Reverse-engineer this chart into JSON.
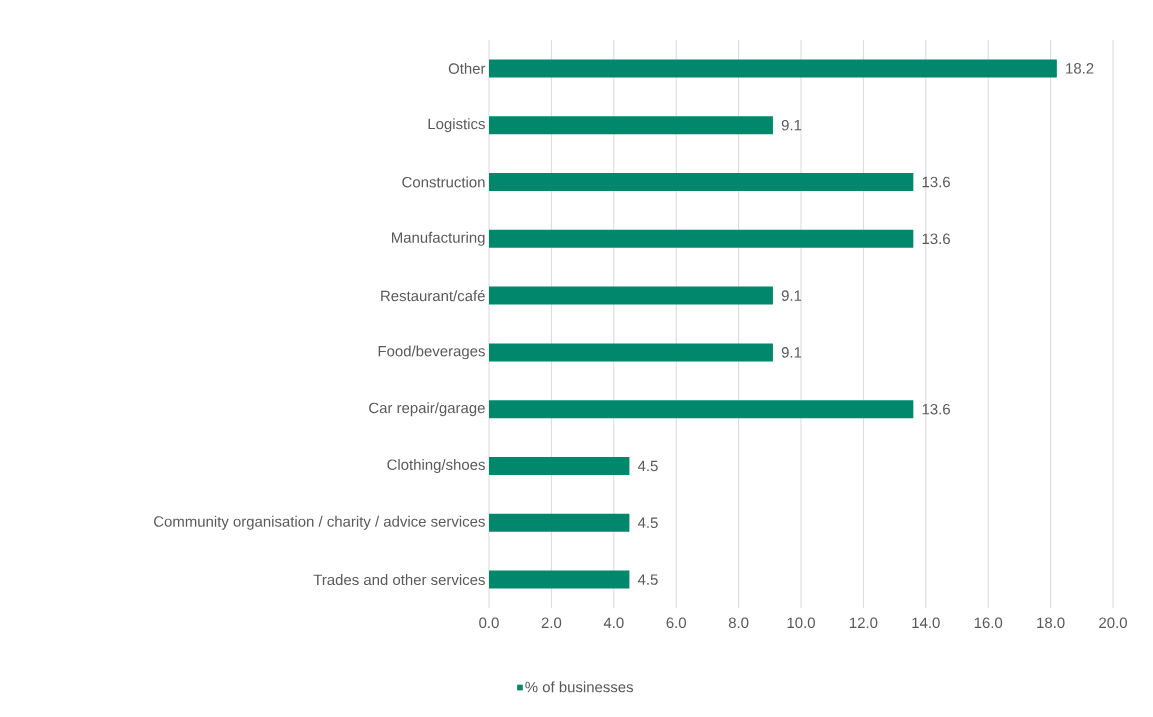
{
  "chart_data": {
    "type": "bar",
    "orientation": "horizontal",
    "categories": [
      "Other",
      "Logistics",
      "Construction",
      "Manufacturing",
      "Restaurant/café",
      "Food/beverages",
      "Car repair/garage",
      "Clothing/shoes",
      "Community organisation / charity / advice services",
      "Trades and other services"
    ],
    "series": [
      {
        "name": "% of businesses",
        "color": "#00876c",
        "values": [
          18.2,
          9.1,
          13.6,
          13.6,
          9.1,
          9.1,
          13.6,
          4.5,
          4.5,
          4.5
        ]
      }
    ],
    "xlim": [
      0,
      20
    ],
    "xticks": [
      {
        "value": 0,
        "label": "0.0"
      },
      {
        "value": 2,
        "label": "2.0"
      },
      {
        "value": 4,
        "label": "4.0"
      },
      {
        "value": 6,
        "label": "6.0"
      },
      {
        "value": 8,
        "label": "8.0"
      },
      {
        "value": 10,
        "label": "10.0"
      },
      {
        "value": 12,
        "label": "12.0"
      },
      {
        "value": 14,
        "label": "14.0"
      },
      {
        "value": 16,
        "label": "16.0"
      },
      {
        "value": 18,
        "label": "18.0"
      },
      {
        "value": 20,
        "label": "20.0"
      }
    ],
    "grid": "x",
    "legend": "bottom",
    "data_labels": true
  }
}
